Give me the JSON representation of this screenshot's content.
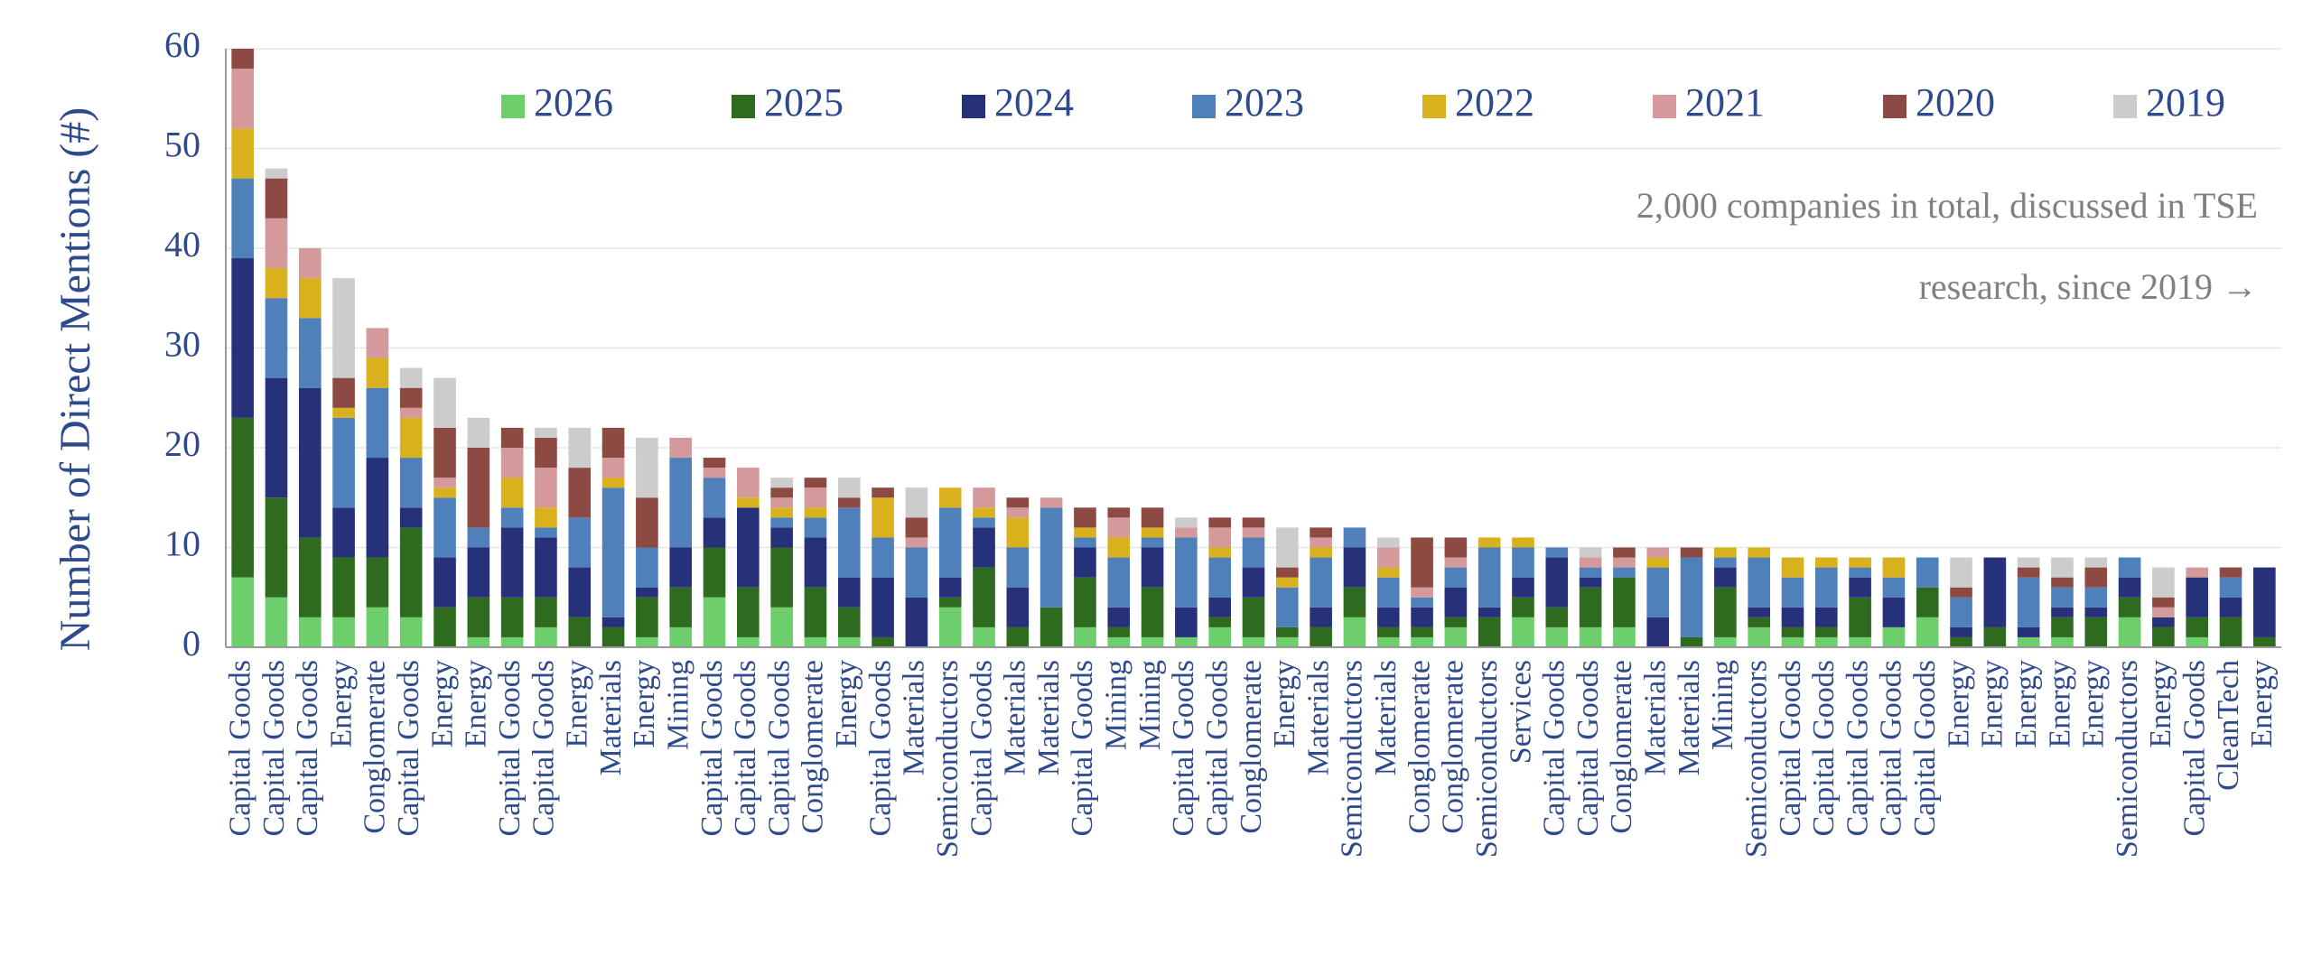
{
  "chart_data": {
    "type": "stacked_bar",
    "ylabel": "Number of Direct Mentions (#)",
    "annotations": [
      "2,000 companies in total, discussed in TSE",
      "research, since 2019 →"
    ],
    "categories": [
      "Capital Goods",
      "Capital Goods",
      "Capital Goods",
      "Energy",
      "Conglomerate",
      "Capital Goods",
      "Energy",
      "Energy",
      "Capital Goods",
      "Capital Goods",
      "Energy",
      "Materials",
      "Energy",
      "Mining",
      "Capital Goods",
      "Capital Goods",
      "Capital Goods",
      "Conglomerate",
      "Energy",
      "Capital Goods",
      "Materials",
      "Semiconductors",
      "Capital Goods",
      "Materials",
      "Materials",
      "Capital Goods",
      "Mining",
      "Mining",
      "Capital Goods",
      "Capital Goods",
      "Conglomerate",
      "Energy",
      "Materials",
      "Semiconductors",
      "Materials",
      "Conglomerate",
      "Conglomerate",
      "Semiconductors",
      "Services",
      "Capital Goods",
      "Capital Goods",
      "Conglomerate",
      "Materials",
      "Materials",
      "Mining",
      "Semiconductors",
      "Capital Goods",
      "Capital Goods",
      "Capital Goods",
      "Capital Goods",
      "Capital Goods",
      "Energy",
      "Energy",
      "Energy",
      "Energy",
      "Energy",
      "Semiconductors",
      "Energy",
      "Capital Goods",
      "CleanTech",
      "Energy"
    ],
    "series": [
      {
        "name": "2026",
        "color": "#6ccf6c",
        "values": [
          7,
          5,
          3,
          3,
          4,
          3,
          0,
          1,
          1,
          2,
          0,
          0,
          1,
          2,
          5,
          1,
          4,
          1,
          1,
          0,
          0,
          4,
          2,
          0,
          0,
          2,
          1,
          1,
          1,
          2,
          1,
          1,
          0,
          3,
          1,
          1,
          2,
          0,
          3,
          2,
          2,
          2,
          0,
          0,
          1,
          2,
          1,
          1,
          1,
          2,
          3,
          0,
          0,
          1,
          1,
          0,
          3,
          0,
          1,
          0,
          0
        ]
      },
      {
        "name": "2025",
        "color": "#2f6b1f",
        "values": [
          16,
          10,
          8,
          6,
          5,
          9,
          4,
          4,
          4,
          3,
          3,
          2,
          4,
          4,
          5,
          5,
          6,
          5,
          3,
          1,
          0,
          1,
          6,
          2,
          4,
          5,
          1,
          5,
          0,
          1,
          4,
          1,
          2,
          3,
          1,
          1,
          1,
          3,
          2,
          2,
          4,
          5,
          0,
          1,
          5,
          1,
          1,
          1,
          4,
          0,
          3,
          1,
          2,
          0,
          2,
          3,
          2,
          2,
          2,
          3,
          1
        ]
      },
      {
        "name": "2024",
        "color": "#27317a",
        "values": [
          16,
          12,
          15,
          5,
          10,
          2,
          5,
          5,
          7,
          6,
          5,
          1,
          1,
          4,
          3,
          8,
          2,
          5,
          3,
          6,
          5,
          2,
          4,
          4,
          0,
          3,
          2,
          4,
          3,
          2,
          3,
          0,
          2,
          4,
          2,
          2,
          3,
          1,
          2,
          5,
          1,
          0,
          3,
          0,
          2,
          1,
          2,
          2,
          2,
          3,
          0,
          1,
          7,
          1,
          1,
          1,
          2,
          1,
          4,
          2,
          7
        ]
      },
      {
        "name": "2023",
        "color": "#4f80b9",
        "values": [
          8,
          8,
          7,
          9,
          7,
          5,
          6,
          2,
          2,
          1,
          5,
          13,
          4,
          9,
          4,
          0,
          1,
          2,
          7,
          4,
          5,
          7,
          1,
          4,
          10,
          1,
          5,
          1,
          7,
          4,
          3,
          4,
          5,
          2,
          3,
          1,
          2,
          6,
          3,
          1,
          1,
          1,
          5,
          8,
          1,
          5,
          3,
          4,
          1,
          2,
          3,
          3,
          0,
          5,
          2,
          2,
          2,
          0,
          0,
          2,
          0
        ]
      },
      {
        "name": "2022",
        "color": "#d9b11c",
        "values": [
          5,
          3,
          4,
          1,
          3,
          4,
          1,
          0,
          3,
          2,
          0,
          1,
          0,
          0,
          0,
          1,
          1,
          1,
          0,
          4,
          0,
          2,
          1,
          3,
          0,
          1,
          2,
          1,
          0,
          1,
          0,
          1,
          1,
          0,
          1,
          0,
          0,
          1,
          1,
          0,
          0,
          0,
          1,
          0,
          1,
          1,
          2,
          1,
          1,
          2,
          0,
          0,
          0,
          0,
          0,
          0,
          0,
          0,
          0,
          0,
          0
        ]
      },
      {
        "name": "2021",
        "color": "#d49a9b",
        "values": [
          6,
          5,
          3,
          0,
          3,
          1,
          1,
          0,
          3,
          4,
          0,
          2,
          0,
          2,
          1,
          3,
          1,
          2,
          0,
          0,
          1,
          0,
          2,
          1,
          1,
          0,
          2,
          0,
          1,
          2,
          1,
          0,
          1,
          0,
          2,
          1,
          1,
          0,
          0,
          0,
          1,
          1,
          1,
          0,
          0,
          0,
          0,
          0,
          0,
          0,
          0,
          0,
          0,
          0,
          0,
          0,
          0,
          1,
          1,
          0,
          0
        ]
      },
      {
        "name": "2020",
        "color": "#8d4a42",
        "values": [
          2,
          4,
          0,
          3,
          0,
          2,
          5,
          8,
          2,
          3,
          5,
          3,
          5,
          0,
          1,
          0,
          1,
          1,
          1,
          1,
          2,
          0,
          0,
          1,
          0,
          2,
          1,
          2,
          0,
          1,
          1,
          1,
          1,
          0,
          0,
          5,
          2,
          0,
          0,
          0,
          0,
          1,
          0,
          1,
          0,
          0,
          0,
          0,
          0,
          0,
          0,
          1,
          0,
          1,
          1,
          2,
          0,
          1,
          0,
          1,
          0
        ]
      },
      {
        "name": "2019",
        "color": "#cccccc",
        "values": [
          0,
          1,
          0,
          10,
          0,
          2,
          5,
          3,
          0,
          1,
          4,
          0,
          6,
          0,
          0,
          0,
          1,
          0,
          2,
          0,
          3,
          0,
          0,
          0,
          0,
          0,
          0,
          0,
          1,
          0,
          0,
          4,
          0,
          0,
          1,
          0,
          0,
          0,
          0,
          0,
          1,
          0,
          0,
          0,
          0,
          0,
          0,
          0,
          0,
          0,
          0,
          3,
          0,
          1,
          2,
          1,
          0,
          3,
          0,
          0,
          0
        ]
      }
    ],
    "ylim": [
      0,
      60
    ],
    "yticks": [
      0,
      10,
      20,
      30,
      40,
      50,
      60
    ],
    "grid": true,
    "legend": "top"
  }
}
